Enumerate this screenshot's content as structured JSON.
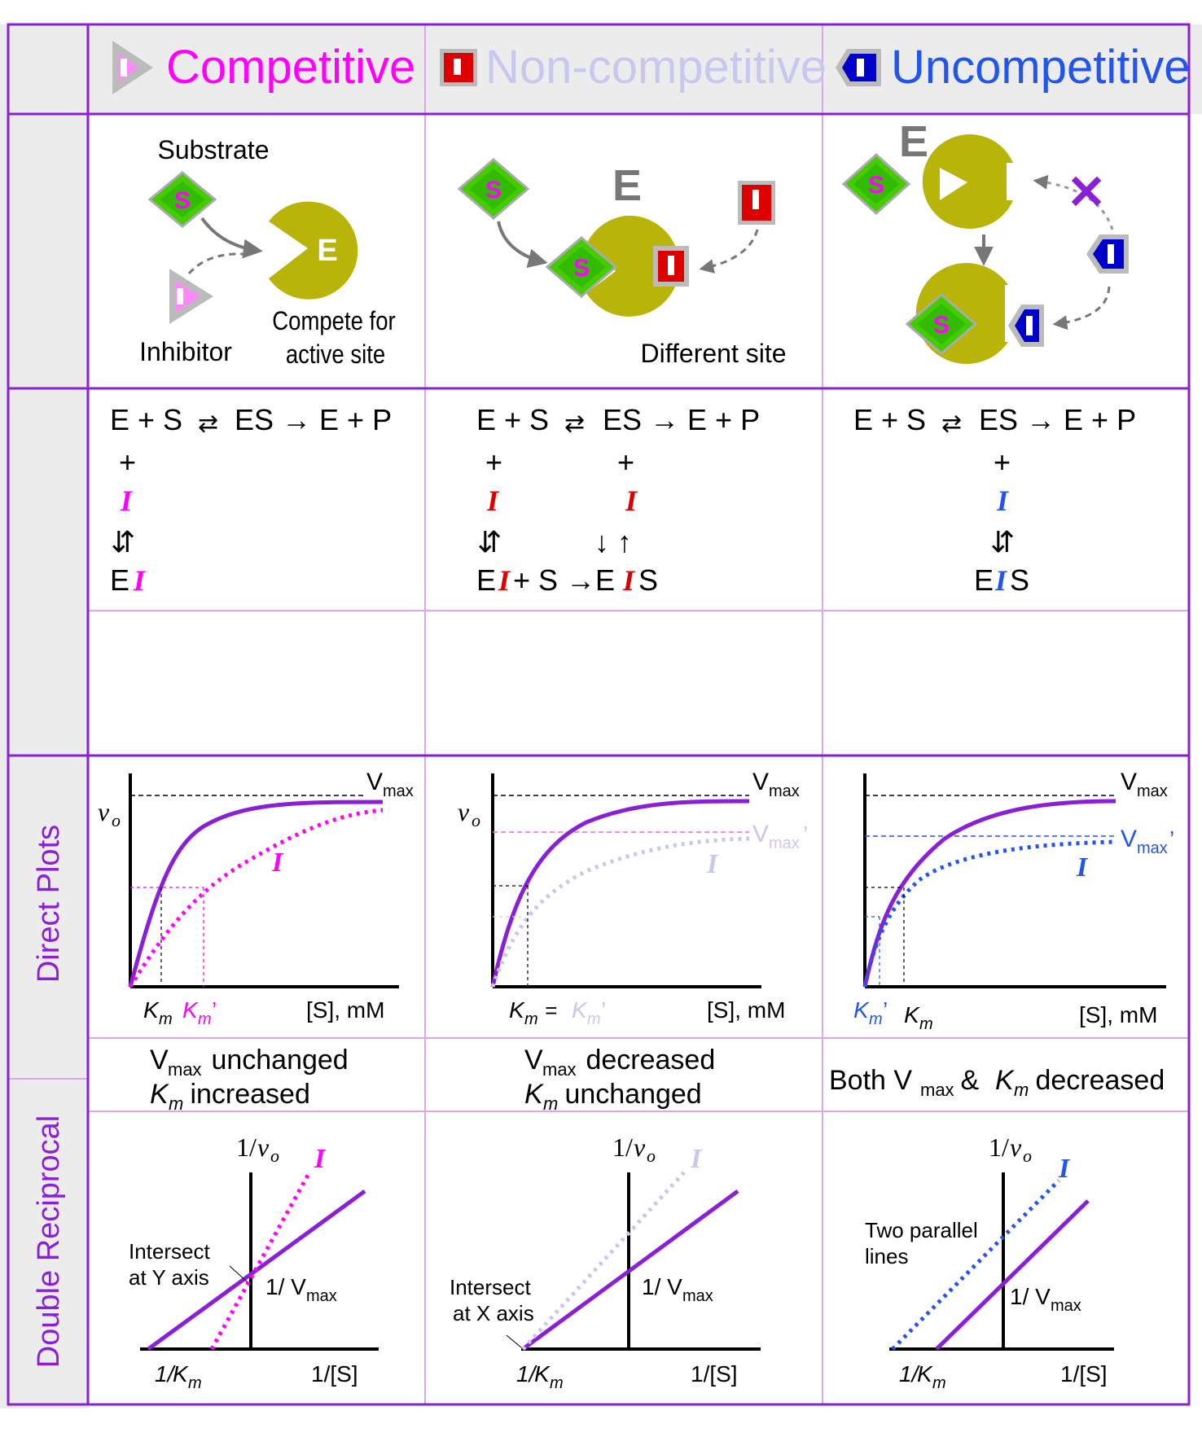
{
  "colors": {
    "border": "#8a1fd6",
    "grid": "#d7a8ee",
    "competitive": "#ff00ff",
    "noncompetitive": "#c8c8ee",
    "uncompetitive": "#2255ee",
    "enzyme": "#b9b40a",
    "substrate_fill": "#44cc00",
    "substrate_text": "#ff00ff",
    "curve": "#8a1fd6",
    "inhibitor_red": "#dd0000",
    "inhibitor_blue": "#0000cc",
    "header_bg": "#ececec"
  },
  "header": {
    "competitive": "Competitive",
    "noncompetitive": "Non-competitive",
    "uncompetitive": "Uncompetitive"
  },
  "row_labels": {
    "direct": "Direct Plots",
    "reciprocal": "Double Reciprocal"
  },
  "glyphs": {
    "S": "S",
    "E": "E",
    "I": "I",
    "x_mark": "✕"
  },
  "competitive": {
    "substrate": "Substrate",
    "inhibitor": "Inhibitor",
    "compete_line1": "Compete for",
    "compete_line2": "active site",
    "eq_main": "E + S",
    "eq_right": "ES → E + P",
    "eq_plus": "+",
    "eq_I": "I",
    "eq_updown": "⇵",
    "eq_E": "E",
    "summary_line1_a": "V",
    "summary_line1_sub": "max",
    "summary_line1_b": " unchanged",
    "summary_line2_a": "K",
    "summary_line2_sub": "m",
    "summary_line2_b": " increased"
  },
  "noncompetitive": {
    "different_site": "Different site",
    "eq_main": "E + S",
    "eq_right": "ES → E + P",
    "eq_plus": "+",
    "eq_I": "I",
    "eq_updown": "⇵",
    "eq_down_up": "↓ ↑",
    "eq_E": "E",
    "eq_mid": " + S →E",
    "eq_S": "S",
    "summary_line1_a": "V",
    "summary_line1_sub": "max",
    "summary_line1_b": " decreased",
    "summary_line2_a": "K",
    "summary_line2_sub": "m",
    "summary_line2_b": " unchanged"
  },
  "uncompetitive": {
    "eq_main": "E + S",
    "eq_right": "ES → E + P",
    "eq_plus": "+",
    "eq_I": "I",
    "eq_updown": "⇵",
    "eq_E": "E",
    "eq_S": "S",
    "summary_a": "Both V",
    "summary_sub": "max",
    "summary_b": " & ",
    "summary_k": "K",
    "summary_ksub": "m",
    "summary_c": " decreased"
  },
  "direct_plot_labels": {
    "vo_v": "v",
    "vo_o": "o",
    "vmax_V": "V",
    "vmax_sub": "max",
    "vmax_prime": "’",
    "km_K": "K",
    "km_m": "m",
    "prime": "’",
    "equals": " = ",
    "xaxis": "[S], mM",
    "I": "I"
  },
  "reciprocal_plot_labels": {
    "yaxis_a": "1/",
    "yaxis_v": "v",
    "yaxis_o": "o",
    "xaxis": "1/[S]",
    "recip_km_a": "1/",
    "recip_km_K": "K",
    "recip_km_m": "m",
    "recip_vmax_a": "1/ V",
    "recip_vmax_sub": "max",
    "I": "I",
    "comp_note_1": "Intersect",
    "comp_note_2": "at Y axis",
    "noncomp_note_1": "Intersect",
    "noncomp_note_2": "at X axis",
    "uncomp_note_1": "Two parallel",
    "uncomp_note_2": "lines"
  }
}
